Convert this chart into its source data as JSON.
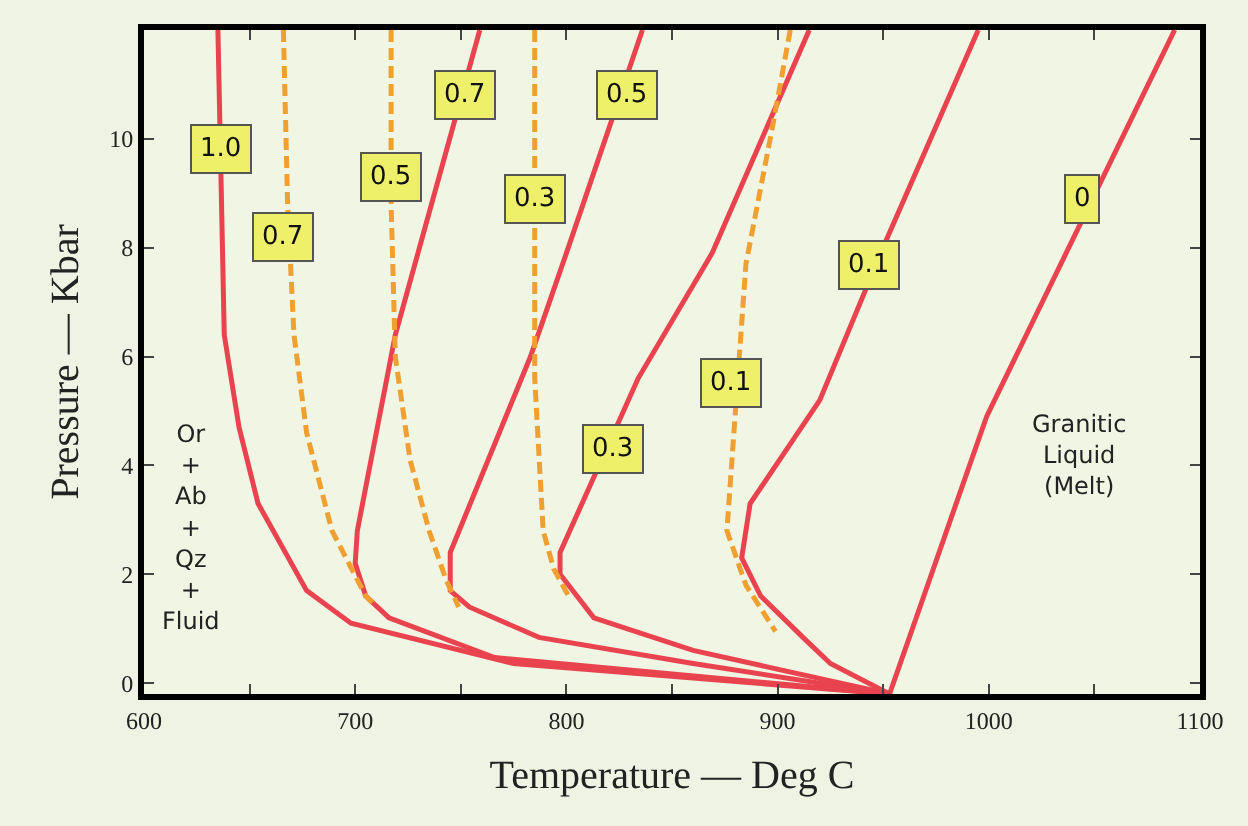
{
  "chart_data": {
    "type": "line",
    "xlabel": "Temperature — Deg C",
    "ylabel": "Pressure — Kbar",
    "xlim": [
      600,
      1100
    ],
    "ylim": [
      -0.2,
      12
    ],
    "xticks": [
      600,
      {
        "value": 650,
        "label": null
      },
      700,
      {
        "value": 750,
        "label": null
      },
      800,
      {
        "value": 850,
        "label": null
      },
      900,
      {
        "value": 950,
        "label": null
      },
      1000,
      {
        "value": 1050,
        "label": null
      },
      1100
    ],
    "yticks": [
      0,
      2,
      4,
      6,
      8,
      10
    ],
    "grid": false,
    "marker": "none",
    "series": [
      {
        "color": "#e8434f",
        "line_style": "solid",
        "x": [
          635,
          638,
          645,
          654,
          677,
          698,
          775,
          953
        ],
        "values": [
          12,
          6.4,
          4.7,
          3.3,
          1.7,
          1.1,
          0.36,
          -0.2
        ]
      },
      {
        "color": "#e8434f",
        "line_style": "solid",
        "x": [
          759,
          719,
          701,
          700,
          705,
          716,
          766,
          953
        ],
        "values": [
          12,
          6.4,
          2.8,
          2.2,
          1.6,
          1.2,
          0.47,
          -0.2
        ]
      },
      {
        "color": "#e8434f",
        "line_style": "solid",
        "x": [
          836,
          800,
          783,
          745,
          745,
          754,
          787,
          860,
          953
        ],
        "values": [
          12,
          7.9,
          6.0,
          2.4,
          1.7,
          1.4,
          0.84,
          0.36,
          -0.2
        ]
      },
      {
        "color": "#e8434f",
        "line_style": "solid",
        "x": [
          915,
          869,
          834,
          797,
          797,
          813,
          860,
          953
        ],
        "values": [
          12,
          7.9,
          5.6,
          2.4,
          2.0,
          1.2,
          0.6,
          -0.2
        ]
      },
      {
        "color": "#e8434f",
        "line_style": "solid",
        "x": [
          995,
          951,
          920,
          887,
          883,
          892,
          912,
          925,
          953
        ],
        "values": [
          12,
          8.1,
          5.2,
          3.3,
          2.3,
          1.6,
          0.84,
          0.36,
          -0.2
        ]
      },
      {
        "color": "#e8434f",
        "line_style": "solid",
        "x": [
          1088,
          999,
          953
        ],
        "values": [
          12,
          4.9,
          -0.2
        ]
      },
      {
        "color": "#f0a030",
        "line_style": "dashed",
        "x": [
          666,
          668,
          671,
          677,
          689,
          705,
          710
        ],
        "values": [
          12,
          8.8,
          6.4,
          4.6,
          2.8,
          1.6,
          1.4
        ]
      },
      {
        "color": "#f0a030",
        "line_style": "dashed",
        "x": [
          717,
          717,
          719,
          726,
          735,
          743,
          749
        ],
        "values": [
          12,
          8.8,
          6.0,
          4.1,
          2.8,
          1.9,
          1.4
        ]
      },
      {
        "color": "#f0a030",
        "line_style": "dashed",
        "x": [
          785,
          785,
          785,
          789,
          794,
          801
        ],
        "values": [
          12,
          7.6,
          5.6,
          2.8,
          2.1,
          1.6
        ]
      },
      {
        "color": "#f0a030",
        "line_style": "dashed",
        "x": [
          906,
          897,
          885,
          876,
          885,
          899
        ],
        "values": [
          12,
          10.1,
          7.7,
          2.8,
          1.8,
          0.95
        ]
      }
    ],
    "annotations": [
      {
        "text": "1.0",
        "x": 636,
        "y": 9.8
      },
      {
        "text": "0.7",
        "x": 666,
        "y": 8.2
      },
      {
        "text": "0.5",
        "x": 717,
        "y": 9.3
      },
      {
        "text": "0.7",
        "x": 752,
        "y": 10.8
      },
      {
        "text": "0.3",
        "x": 785,
        "y": 8.9
      },
      {
        "text": "0.5",
        "x": 829,
        "y": 10.8
      },
      {
        "text": "0.3",
        "x": 822,
        "y": 4.3
      },
      {
        "text": "0.1",
        "x": 878,
        "y": 5.5
      },
      {
        "text": "0.1",
        "x": 943,
        "y": 7.7
      },
      {
        "text": "0",
        "x": 1044,
        "y": 8.9
      },
      "Or\n+\nAb\n+\nQz\n+\nFluid",
      "Granitic\nLiquid\n(Melt)"
    ]
  }
}
